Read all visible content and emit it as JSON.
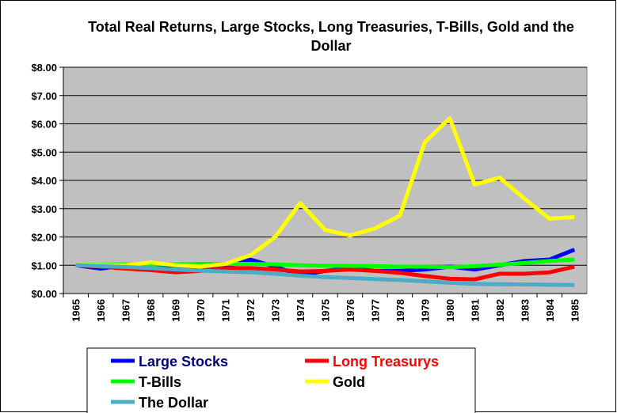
{
  "chart_data": {
    "type": "line",
    "title": "Total Real Returns, Large Stocks, Long Treasuries, T-Bills, Gold and the Dollar",
    "categories": [
      "1965",
      "1966",
      "1967",
      "1968",
      "1969",
      "1970",
      "1971",
      "1972",
      "1973",
      "1974",
      "1975",
      "1976",
      "1977",
      "1978",
      "1979",
      "1980",
      "1981",
      "1982",
      "1983",
      "1984",
      "1985"
    ],
    "ylim": [
      0,
      8
    ],
    "yticks": [
      {
        "value": 0,
        "label": "$0.00"
      },
      {
        "value": 1,
        "label": "$1.00"
      },
      {
        "value": 2,
        "label": "$2.00"
      },
      {
        "value": 3,
        "label": "$3.00"
      },
      {
        "value": 4,
        "label": "$4.00"
      },
      {
        "value": 5,
        "label": "$5.00"
      },
      {
        "value": 6,
        "label": "$6.00"
      },
      {
        "value": 7,
        "label": "$7.00"
      },
      {
        "value": 8,
        "label": "$8.00"
      }
    ],
    "grid": true,
    "plot_background": "#c0c0c0",
    "series": [
      {
        "name": "Large Stocks",
        "color": "#0000ff",
        "label_color": "#000080",
        "values": [
          1.0,
          0.88,
          1.0,
          1.05,
          0.95,
          0.9,
          0.95,
          1.2,
          0.95,
          0.65,
          0.8,
          0.9,
          0.8,
          0.8,
          0.85,
          0.95,
          0.85,
          1.0,
          1.15,
          1.2,
          1.55
        ]
      },
      {
        "name": "Long Treasurys",
        "color": "#ff0000",
        "label_color": "#ff0000",
        "values": [
          1.0,
          0.95,
          0.88,
          0.83,
          0.75,
          0.8,
          0.9,
          0.9,
          0.85,
          0.78,
          0.8,
          0.85,
          0.8,
          0.73,
          0.62,
          0.52,
          0.5,
          0.7,
          0.7,
          0.75,
          0.95
        ]
      },
      {
        "name": "T-Bills",
        "color": "#00ff00",
        "label_color": "#000000",
        "values": [
          1.0,
          1.02,
          1.03,
          1.03,
          1.03,
          1.05,
          1.05,
          1.05,
          1.03,
          1.0,
          0.98,
          0.98,
          0.97,
          0.95,
          0.95,
          0.93,
          0.97,
          1.02,
          1.08,
          1.15,
          1.2
        ]
      },
      {
        "name": "Gold",
        "color": "#ffff00",
        "label_color": "#000000",
        "values": [
          1.0,
          1.0,
          1.0,
          1.1,
          1.0,
          0.95,
          1.05,
          1.35,
          2.0,
          3.2,
          2.25,
          2.05,
          2.3,
          2.75,
          5.35,
          6.2,
          3.85,
          4.1,
          3.35,
          2.65,
          2.7
        ]
      },
      {
        "name": "The Dollar",
        "color": "#4bacc6",
        "label_color": "#000000",
        "values": [
          1.0,
          0.97,
          0.94,
          0.9,
          0.85,
          0.81,
          0.78,
          0.75,
          0.7,
          0.63,
          0.58,
          0.55,
          0.51,
          0.48,
          0.43,
          0.38,
          0.34,
          0.33,
          0.32,
          0.31,
          0.3
        ]
      }
    ]
  }
}
